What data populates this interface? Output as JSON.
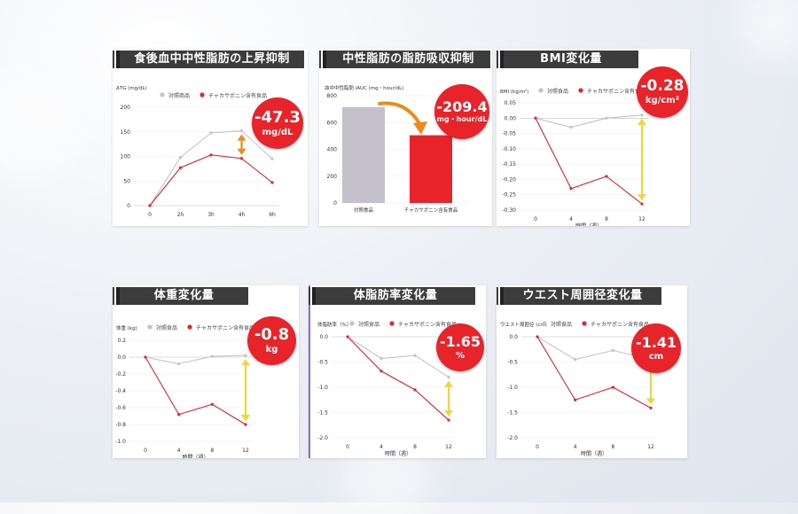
{
  "colors": {
    "control": "#c4c1cc",
    "test": "#e8232a",
    "arrow_orange": "#f08a1c",
    "arrow_yellow": "#f2d53a",
    "title_bg": "#3c3c3c"
  },
  "legend": {
    "control_a": "対照商品",
    "control_b": "対照食品",
    "test": "チャカサポニン含有食品"
  },
  "panels": {
    "tg": {
      "title": "食後血中中性脂肪の上昇抑制",
      "badge_value": "-47.3",
      "badge_unit": "mg/dL",
      "ylabel": "ΔTG (mg/dL)"
    },
    "auc": {
      "title": "中性脂肪の脂肪吸収抑制",
      "badge_value": "-209.4",
      "badge_unit": "mg・hour/dL",
      "ylabel": "血中中性脂肪 iAUC (mg・hour/dL)"
    },
    "bmi": {
      "title": "BMI変化量",
      "badge_value": "-0.28",
      "badge_unit": "kg/cm²",
      "ylabel": "BMI (kg/m²)",
      "xlabel": "時間（週）"
    },
    "weight": {
      "title": "体重変化量",
      "badge_value": "-0.8",
      "badge_unit": "kg",
      "ylabel": "体重 (kg)",
      "xlabel": "時間（週）"
    },
    "fat": {
      "title": "体脂肪率変化量",
      "badge_value": "-1.65",
      "badge_unit": "%",
      "ylabel": "体脂肪率（%）",
      "xlabel": "時間（週）"
    },
    "waist": {
      "title": "ウエスト周囲径変化量",
      "badge_value": "-1.41",
      "badge_unit": "cm",
      "ylabel": "ウエスト周囲径 (cm)",
      "xlabel": "時間（週）"
    }
  },
  "chart_data": [
    {
      "id": "tg",
      "type": "line",
      "x": [
        "0",
        "2h",
        "3h",
        "4h",
        "6h"
      ],
      "series": [
        {
          "name": "対照商品",
          "values": [
            0,
            98,
            148,
            152,
            95
          ]
        },
        {
          "name": "チャカサポニン含有食品",
          "values": [
            0,
            77,
            103,
            96,
            47
          ]
        }
      ],
      "ylim": [
        0,
        200
      ],
      "yticks": [
        0,
        50,
        100,
        150,
        200
      ],
      "ylabel": "ΔTG (mg/dL)",
      "xlabel": ""
    },
    {
      "id": "auc",
      "type": "bar",
      "categories": [
        "対照食品",
        "チャカサポニン含有食品"
      ],
      "values": [
        715,
        505
      ],
      "ylim": [
        0,
        800
      ],
      "yticks": [
        0,
        200,
        400,
        600,
        800
      ],
      "ylabel": "血中中性脂肪 iAUC (mg・hour/dL)",
      "xlabel": ""
    },
    {
      "id": "bmi",
      "type": "line",
      "x": [
        "0",
        "4",
        "8",
        "12"
      ],
      "series": [
        {
          "name": "対照食品",
          "values": [
            0,
            -0.03,
            0,
            0.01
          ]
        },
        {
          "name": "チャカサポニン含有食品",
          "values": [
            0,
            -0.23,
            -0.19,
            -0.28
          ]
        }
      ],
      "ylim": [
        -0.3,
        0.05
      ],
      "yticks": [
        0.05,
        0,
        -0.05,
        -0.1,
        -0.15,
        -0.2,
        -0.25,
        -0.3
      ],
      "ylabel": "BMI (kg/m²)",
      "xlabel": "時間（週）"
    },
    {
      "id": "weight",
      "type": "line",
      "x": [
        "0",
        "4",
        "8",
        "12"
      ],
      "series": [
        {
          "name": "対照食品",
          "values": [
            0,
            -0.08,
            0.01,
            0.02
          ]
        },
        {
          "name": "チャカサポニン含有食品",
          "values": [
            0,
            -0.68,
            -0.56,
            -0.8
          ]
        }
      ],
      "ylim": [
        -1.0,
        0.2
      ],
      "yticks": [
        0.2,
        0.0,
        -0.2,
        -0.4,
        -0.6,
        -0.8,
        -1.0
      ],
      "ylabel": "体重 (kg)",
      "xlabel": "時間（週）"
    },
    {
      "id": "fat",
      "type": "line",
      "x": [
        "0",
        "4",
        "8",
        "12"
      ],
      "series": [
        {
          "name": "対照食品",
          "values": [
            0,
            -0.43,
            -0.37,
            -0.8
          ]
        },
        {
          "name": "チャカサポニン含有食品",
          "values": [
            0,
            -0.68,
            -1.05,
            -1.65
          ]
        }
      ],
      "ylim": [
        -2.0,
        0
      ],
      "yticks": [
        0,
        -0.5,
        -1.0,
        -1.5,
        -2.0
      ],
      "ylabel": "体脂肪率（%）",
      "xlabel": "時間（週）"
    },
    {
      "id": "waist",
      "type": "line",
      "x": [
        "0",
        "4",
        "8",
        "12"
      ],
      "series": [
        {
          "name": "対照食品",
          "values": [
            0,
            -0.45,
            -0.27,
            -0.45
          ]
        },
        {
          "name": "チャカサポニン含有食品",
          "values": [
            0,
            -1.25,
            -1.0,
            -1.41
          ]
        }
      ],
      "ylim": [
        -2.0,
        0
      ],
      "yticks": [
        0,
        -0.5,
        -1.0,
        -1.5,
        -2.0
      ],
      "ylabel": "ウエスト周囲径 (cm)",
      "xlabel": "時間（週）"
    }
  ]
}
